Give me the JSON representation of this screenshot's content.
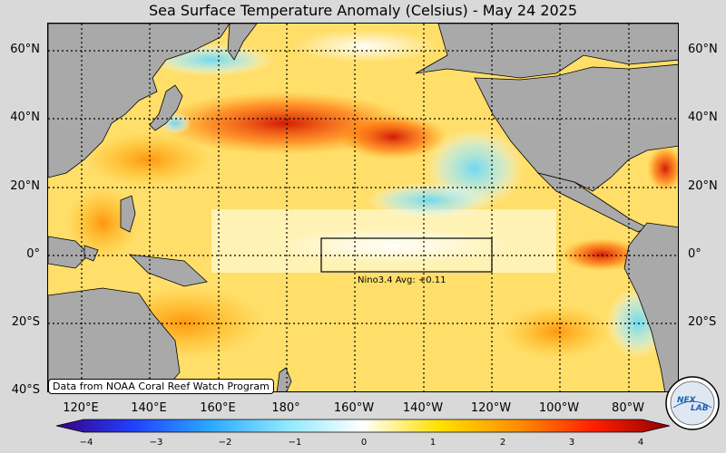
{
  "title": "Sea Surface Temperature Anomaly (Celsius) - May 24 2025",
  "lat_labels": [
    "60°N",
    "40°N",
    "20°N",
    "0°",
    "20°S",
    "40°S"
  ],
  "lon_labels": [
    "120°E",
    "140°E",
    "160°E",
    "180°",
    "160°W",
    "140°W",
    "120°W",
    "100°W",
    "80°W"
  ],
  "nino_box_label": "Nino3.4 Avg: +0.11",
  "source_note": "Data from NOAA Coral Reef Watch Program",
  "logo_text": [
    "NEX",
    "LAB"
  ],
  "colorbar": {
    "ticks": [
      "−4",
      "−3",
      "−2",
      "−1",
      "0",
      "1",
      "2",
      "3",
      "4"
    ],
    "range": [
      -4,
      4
    ],
    "colors": [
      "#3b0080",
      "#2040ff",
      "#2aa8ff",
      "#8ee8ff",
      "#ffffff",
      "#ffe000",
      "#ff9000",
      "#ff2000",
      "#900000"
    ]
  },
  "colors": {
    "land": "#a9a9a9",
    "ocean_base": "#ffe98a"
  }
}
